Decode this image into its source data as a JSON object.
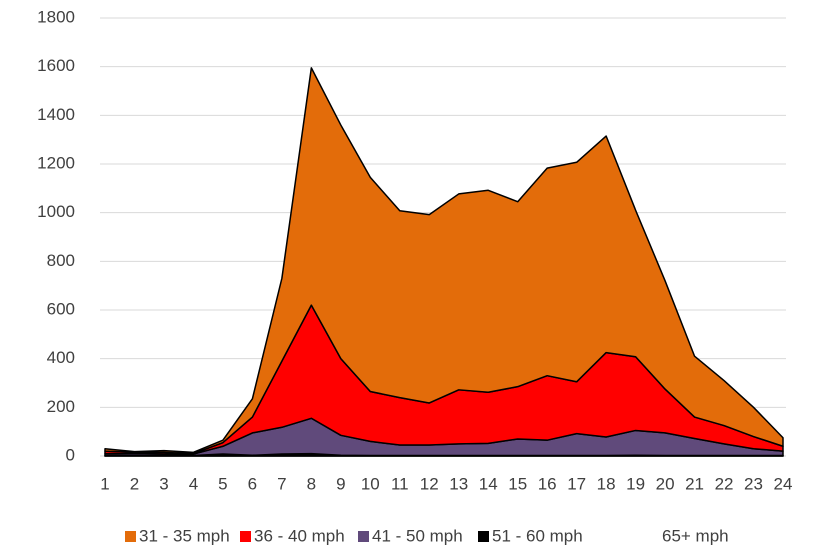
{
  "chart_data": {
    "type": "stacked_area",
    "categories": [
      "1",
      "2",
      "3",
      "4",
      "5",
      "6",
      "7",
      "8",
      "9",
      "10",
      "11",
      "12",
      "13",
      "14",
      "15",
      "16",
      "17",
      "18",
      "19",
      "20",
      "21",
      "22",
      "23",
      "24"
    ],
    "series": [
      {
        "name": "31 - 35 mph",
        "color": "#e36c0a",
        "values": [
          10,
          3,
          7,
          5,
          10,
          75,
          340,
          975,
          960,
          880,
          768,
          774,
          805,
          830,
          760,
          853,
          902,
          890,
          602,
          445,
          250,
          185,
          120,
          35
        ]
      },
      {
        "name": "36 - 40 mph",
        "color": "#ff0000",
        "values": [
          10,
          5,
          7,
          2,
          15,
          65,
          272,
          465,
          315,
          205,
          195,
          173,
          222,
          210,
          215,
          265,
          213,
          347,
          303,
          180,
          88,
          75,
          50,
          20
        ]
      },
      {
        "name": "41 - 50 mph",
        "color": "#604a7b",
        "values": [
          7,
          8,
          6,
          6,
          32,
          92,
          110,
          145,
          82,
          58,
          43,
          43,
          48,
          50,
          68,
          63,
          90,
          76,
          102,
          93,
          70,
          48,
          28,
          18
        ]
      },
      {
        "name": "51 - 60 mph",
        "color": "#000000",
        "values": [
          3,
          2,
          2,
          2,
          8,
          3,
          8,
          10,
          3,
          2,
          2,
          2,
          2,
          2,
          2,
          2,
          2,
          2,
          3,
          2,
          2,
          2,
          2,
          2
        ]
      },
      {
        "name": "65+ mph",
        "color": "#ffffff",
        "values": [
          0,
          0,
          0,
          0,
          0,
          0,
          0,
          0,
          0,
          0,
          0,
          0,
          0,
          0,
          0,
          0,
          0,
          0,
          0,
          0,
          0,
          0,
          0,
          0
        ]
      }
    ],
    "ylim": [
      0,
      1800
    ],
    "yticks": [
      0,
      200,
      400,
      600,
      800,
      1000,
      1200,
      1400,
      1600,
      1800
    ],
    "grid": true
  }
}
